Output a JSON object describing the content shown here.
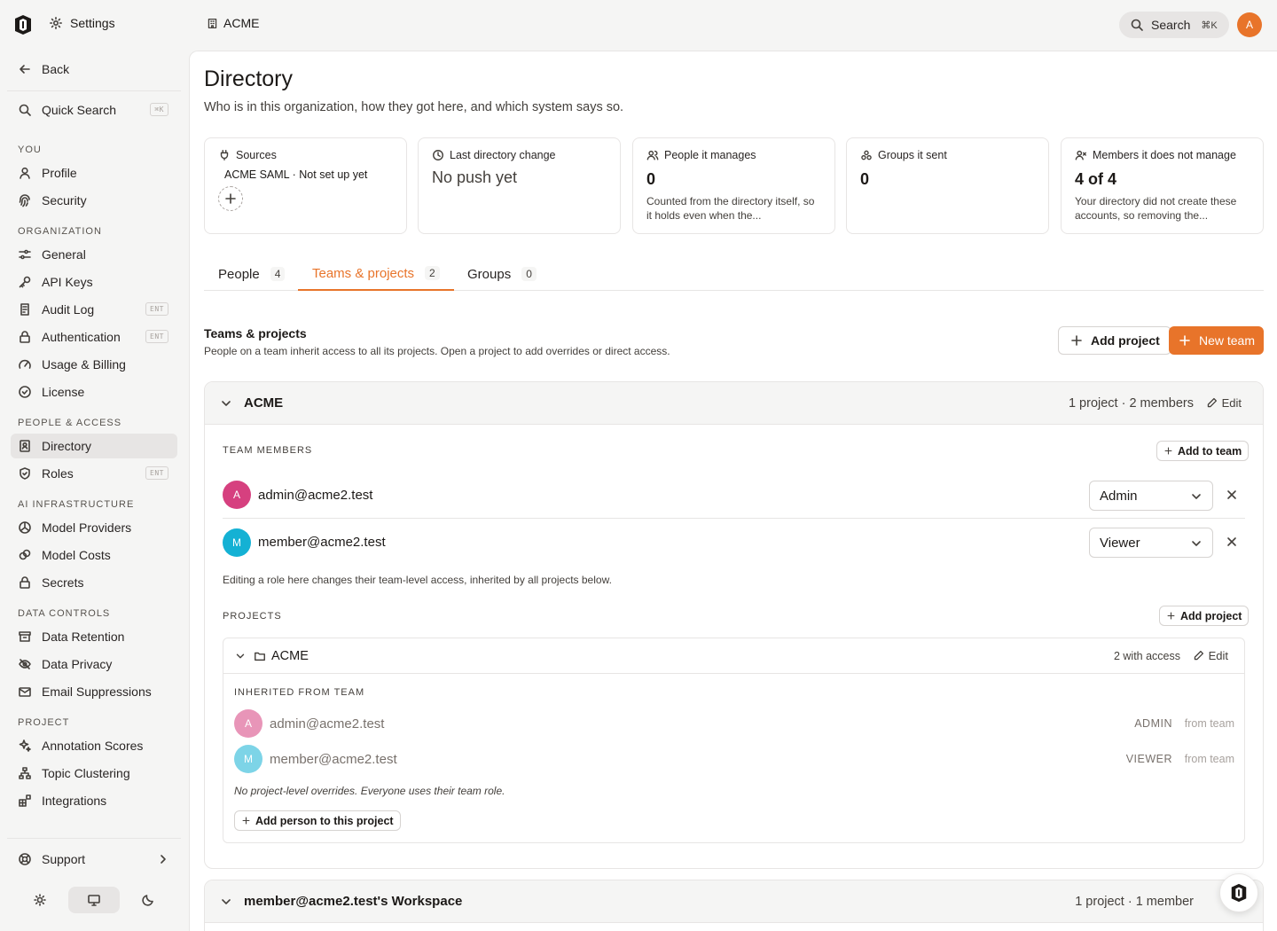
{
  "topbar": {
    "settings_label": "Settings",
    "org_name": "ACME",
    "search_label": "Search",
    "search_shortcut": "⌘K",
    "avatar_initial": "A",
    "accent_color": "#e8742a"
  },
  "sidebar": {
    "back": "Back",
    "quick_search": "Quick Search",
    "quick_search_shortcut": "⌘K",
    "sections": {
      "you": "YOU",
      "organization": "ORGANIZATION",
      "people_access": "PEOPLE & ACCESS",
      "ai_infra": "AI INFRASTRUCTURE",
      "data_controls": "DATA CONTROLS",
      "project": "PROJECT"
    },
    "items": {
      "profile": "Profile",
      "security": "Security",
      "general": "General",
      "api_keys": "API Keys",
      "audit_log": "Audit Log",
      "authentication": "Authentication",
      "usage_billing": "Usage & Billing",
      "license": "License",
      "directory": "Directory",
      "roles": "Roles",
      "model_providers": "Model Providers",
      "model_costs": "Model Costs",
      "secrets": "Secrets",
      "data_retention": "Data Retention",
      "data_privacy": "Data Privacy",
      "email_suppressions": "Email Suppressions",
      "annotation_scores": "Annotation Scores",
      "topic_clustering": "Topic Clustering",
      "integrations": "Integrations",
      "support": "Support"
    },
    "ent_badge": "ENT"
  },
  "page": {
    "title": "Directory",
    "subtitle": "Who is in this organization, how they got here, and which system says so."
  },
  "cards": {
    "sources": {
      "label": "Sources",
      "value": "ACME SAML · Not set up yet"
    },
    "last_change": {
      "label": "Last directory change",
      "value": "No push yet"
    },
    "people_managed": {
      "label": "People it manages",
      "value": "0",
      "desc": "Counted from the directory itself, so it holds even when the..."
    },
    "groups_sent": {
      "label": "Groups it sent",
      "value": "0"
    },
    "not_managed": {
      "label": "Members it does not manage",
      "value": "4 of 4",
      "desc": "Your directory did not create these accounts, so removing the..."
    }
  },
  "tabs": [
    {
      "label": "People",
      "count": "4"
    },
    {
      "label": "Teams & projects",
      "count": "2"
    },
    {
      "label": "Groups",
      "count": "0"
    }
  ],
  "section": {
    "title": "Teams & projects",
    "subtitle": "People on a team inherit access to all its projects. Open a project to add overrides or direct access.",
    "add_project": "Add project",
    "new_team": "New team"
  },
  "team1": {
    "name": "ACME",
    "meta": "1 project · 2 members",
    "edit": "Edit",
    "members_label": "TEAM MEMBERS",
    "add_to_team": "Add to team",
    "members": [
      {
        "initial": "A",
        "email": "admin@acme2.test",
        "role": "Admin",
        "color": "#d6407f"
      },
      {
        "initial": "M",
        "email": "member@acme2.test",
        "role": "Viewer",
        "color": "#14b1d4"
      }
    ],
    "note": "Editing a role here changes their team-level access, inherited by all projects below.",
    "projects_label": "PROJECTS",
    "add_project": "Add project",
    "project": {
      "name": "ACME",
      "access": "2 with access",
      "edit": "Edit",
      "inherited_label": "INHERITED FROM TEAM",
      "inherited": [
        {
          "initial": "A",
          "email": "admin@acme2.test",
          "role": "ADMIN",
          "from": "from team"
        },
        {
          "initial": "M",
          "email": "member@acme2.test",
          "role": "VIEWER",
          "from": "from team"
        }
      ],
      "note": "No project-level overrides. Everyone uses their team role.",
      "add_person": "Add person to this project"
    }
  },
  "team2": {
    "name": "member@acme2.test's Workspace",
    "meta": "1 project · 1 member"
  }
}
